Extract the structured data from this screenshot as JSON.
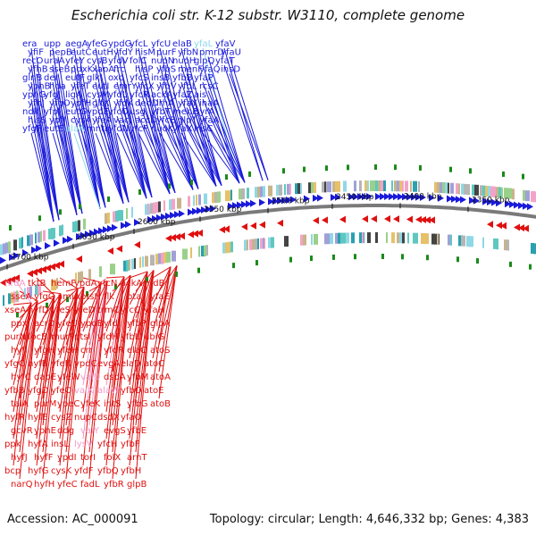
{
  "title": "Escherichia coli str. K-12 substr. W3110, complete genome",
  "footer": {
    "accession": "Accession: AC_000091",
    "summary": "Topology: circular; Length: 4,646,332 bp; Genes: 4,383"
  },
  "colors": {
    "forward": "#1a1adb",
    "reverse": "#e01010",
    "forward_light": "#88d8e8",
    "reverse_light": "#f29ac8",
    "backbone": "#7a7a7a",
    "tick_marker": "#1a8a1a"
  },
  "ticks": [
    "2700 kbp",
    "2650 kbp",
    "2600 kbp",
    "2550 kbp",
    "2500 kbp",
    "2450 kbp",
    "2400 kbp",
    "2350 kbp"
  ],
  "forward_labels": [
    "era",
    "yfiF",
    "recO",
    "yfhB",
    "glnB",
    "yphB",
    "yphG",
    "yfhJ",
    "ndk",
    "hisS",
    "yfgF",
    "upp",
    "pepB",
    "uraA",
    "sseB",
    "der",
    "hda",
    "yfgJ",
    "yfgO",
    "yfpI",
    "ypfJ",
    "eutE",
    "aegA",
    "eutC",
    "yfeY",
    "pdxK",
    "eutF",
    "yfeT",
    "ligA",
    "ypfH",
    "eutG",
    "cysA",
    "alaA",
    "yfeG",
    "eutH",
    "cysB",
    "xapA",
    "glk",
    "eutI",
    "cysM",
    "gltX",
    "ypdE",
    "yfeA",
    "mntH",
    "ypdG",
    "yfdY",
    "yfdV",
    "frc",
    "oxc",
    "emrY",
    "yfdL",
    "yfdK",
    "yfcO",
    "vacJ",
    "yfdN",
    "yfcL",
    "hisM",
    "folC",
    "hisP",
    "yfcS",
    "yfcX",
    "yfcR",
    "dedD",
    "usg",
    "accD",
    "yfcP",
    "yfcU",
    "purF",
    "nuoN",
    "yfbS",
    "insB",
    "yfbV",
    "ackA",
    "lrhA",
    "yfbT",
    "yfcE",
    "nuoK",
    "elaB",
    "yfbN",
    "nuoH",
    "menF",
    "yfbB",
    "yfbL",
    "yfaZ",
    "yfaY",
    "menE",
    "glpT",
    "yfaX",
    "yfaL",
    "pmrD",
    "glpQ",
    "yfaQ",
    "yfaP",
    "rcsC",
    "ais",
    "inaA",
    "gyrA",
    "yfaA",
    "insC",
    "yfaV",
    "yfaU",
    "yfaT",
    "insD"
  ],
  "reverse_labels": [
    "nrdA",
    "sseA",
    "xseA",
    "ppx",
    "purN",
    "hyfI",
    "yfgC",
    "hyfC",
    "yfbB",
    "talA",
    "hyfR",
    "gcvR",
    "ppk",
    "hyfJ",
    "bcp",
    "narQ",
    "tktB",
    "yfgG",
    "hyfD",
    "acrD",
    "focB",
    "yfgH",
    "hyfB",
    "dapE",
    "yfgD",
    "purM",
    "hyfE",
    "yphE",
    "hyfA",
    "hyfF",
    "hyfG",
    "hyfH",
    "hemF",
    "amiA",
    "yfeS",
    "yfeU",
    "murP",
    "yfeH",
    "yfeN",
    "yfeW",
    "yfeO",
    "ypeC",
    "cysZ",
    "ddg",
    "insL",
    "ypdI",
    "cysK",
    "yfeC",
    "ypdA",
    "ptsH",
    "yfeD",
    "ypdB",
    "ptsI",
    "crr",
    "ypdC",
    "valU",
    "valX",
    "yfeK",
    "nupC",
    "valY",
    "lysV",
    "torI",
    "yfdF",
    "fadL",
    "yfcN",
    "flk",
    "trmC",
    "yfdI",
    "yfdH",
    "yfdR",
    "evgA",
    "dsdA",
    "alaW",
    "intS",
    "dsdX",
    "evgS",
    "yfcH",
    "folX",
    "yfbQ",
    "yfbR",
    "ackA",
    "pta",
    "yfcC",
    "yfbP",
    "yfbL",
    "elaC",
    "elaD",
    "yfbM",
    "yfbO",
    "yfbG",
    "yfaO",
    "yfbE",
    "yfbF",
    "arnT",
    "yfbH",
    "glpB",
    "nrdB",
    "yfaE",
    "yfaH",
    "glpA",
    "ubiG",
    "atoS",
    "atoC",
    "atoA",
    "atoE",
    "atoB"
  ]
}
